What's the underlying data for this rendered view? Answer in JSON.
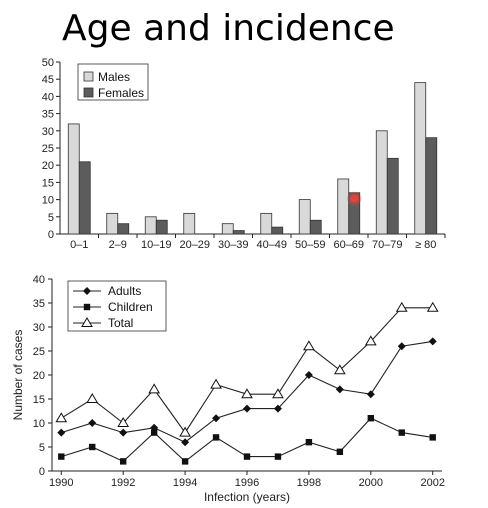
{
  "slide": {
    "title": "Age and incidence"
  },
  "chart_data": [
    {
      "type": "bar",
      "categories": [
        "0–1",
        "2–9",
        "10–19",
        "20–29",
        "30–39",
        "40–49",
        "50–59",
        "60–69",
        "70–79",
        "≥ 80"
      ],
      "series": [
        {
          "name": "Males",
          "values": [
            32,
            6,
            5,
            6,
            3,
            6,
            10,
            16,
            30,
            44
          ],
          "color": "#d9d9d9"
        },
        {
          "name": "Females",
          "values": [
            21,
            3,
            4,
            0,
            1,
            2,
            4,
            12,
            22,
            28
          ],
          "color": "#5c5c5c"
        }
      ],
      "ylim": [
        0,
        50
      ],
      "yticks": [
        0,
        5,
        10,
        15,
        20,
        25,
        30,
        35,
        40,
        45,
        50
      ],
      "legend_position": "top-left",
      "highlight_marker": {
        "category": "60–69",
        "color": "#e8413a"
      },
      "xlabel": "",
      "ylabel": ""
    },
    {
      "type": "line",
      "x": [
        1990,
        1991,
        1992,
        1993,
        1994,
        1995,
        1996,
        1997,
        1998,
        1999,
        2000,
        2001,
        2002
      ],
      "series": [
        {
          "name": "Adults",
          "marker": "diamond",
          "values": [
            8,
            10,
            8,
            9,
            6,
            11,
            13,
            13,
            20,
            17,
            16,
            26,
            27
          ]
        },
        {
          "name": "Children",
          "marker": "square",
          "values": [
            3,
            5,
            2,
            8,
            2,
            7,
            3,
            3,
            6,
            4,
            11,
            8,
            7
          ]
        },
        {
          "name": "Total",
          "marker": "triangle",
          "values": [
            11,
            15,
            10,
            17,
            8,
            18,
            16,
            16,
            26,
            21,
            27,
            34,
            34
          ]
        }
      ],
      "xticks": [
        1990,
        1992,
        1994,
        1996,
        1998,
        2000,
        2002
      ],
      "xlim": [
        1989.7,
        2002.3
      ],
      "ylim": [
        0,
        40
      ],
      "yticks": [
        0,
        5,
        10,
        15,
        20,
        25,
        30,
        35,
        40
      ],
      "xlabel": "Infection (years)",
      "ylabel": "Number of cases",
      "legend_position": "top-left"
    }
  ]
}
